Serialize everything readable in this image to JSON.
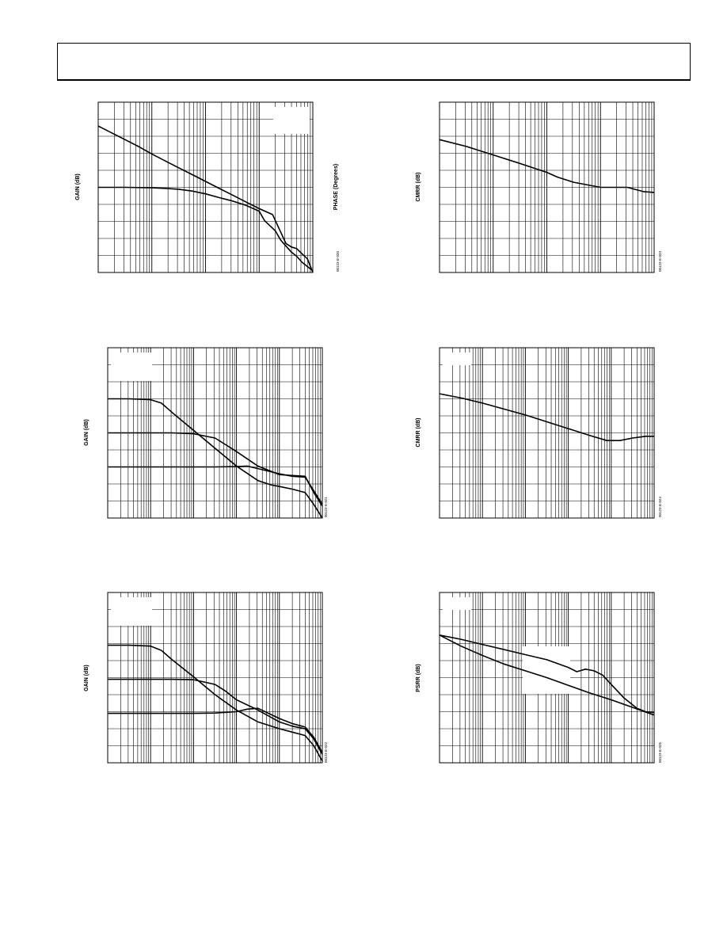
{
  "header": {
    "text": ""
  },
  "chart_data": [
    {
      "id": "c020",
      "type": "line",
      "ylabel": "GAIN (dB)",
      "y2label": "PHASE (Degrees)",
      "figure_code": "00123-E-020",
      "log_decades": 4,
      "y_divisions": 10,
      "series": [
        {
          "x": [
            0,
            0.25,
            0.5,
            0.75,
            1,
            1.25,
            1.5,
            1.75,
            2,
            2.25,
            2.5,
            2.75,
            3,
            3.25,
            3.5,
            3.6,
            3.7,
            3.8,
            3.9,
            4.0
          ],
          "y": [
            8.6,
            8.2,
            7.8,
            7.4,
            6.96,
            6.55,
            6.15,
            5.75,
            5.35,
            4.95,
            4.55,
            4.15,
            3.75,
            3.4,
            1.7,
            1.5,
            1.4,
            1.1,
            0.8,
            0.0
          ]
        },
        {
          "x": [
            0,
            0.5,
            1,
            1.25,
            1.5,
            1.75,
            2,
            2.25,
            2.5,
            2.75,
            3,
            3.1,
            3.2,
            3.3,
            3.4,
            3.5,
            3.6,
            3.7,
            3.8,
            3.9,
            4.0
          ],
          "y": [
            5.0,
            5.0,
            4.97,
            4.94,
            4.89,
            4.78,
            4.62,
            4.4,
            4.2,
            3.95,
            3.6,
            3.05,
            2.75,
            2.45,
            1.9,
            1.55,
            1.2,
            0.95,
            0.6,
            0.35,
            0.1
          ]
        }
      ]
    },
    {
      "id": "c023",
      "type": "line",
      "ylabel": "CMRR (dB)",
      "figure_code": "00123-E-023",
      "log_decades": 4,
      "y_divisions": 10,
      "series": [
        {
          "x": [
            0,
            0.5,
            1,
            1.5,
            2,
            2.2,
            2.5,
            3,
            3.5,
            3.8,
            4.0
          ],
          "y": [
            7.8,
            7.4,
            6.9,
            6.4,
            5.88,
            5.6,
            5.3,
            5.0,
            5.0,
            4.75,
            4.7
          ]
        }
      ]
    },
    {
      "id": "c021",
      "type": "line",
      "ylabel": "GAIN (dB)",
      "figure_code": "00123-E-021",
      "log_decades": 5,
      "y_divisions": 10,
      "series": [
        {
          "x": [
            0,
            0.5,
            1,
            1.25,
            1.5,
            2,
            2.5,
            3,
            3.5,
            3.8,
            4.0,
            4.3,
            4.6,
            4.8,
            5.0
          ],
          "y": [
            7.0,
            7.0,
            6.95,
            6.75,
            6.2,
            5.15,
            4.1,
            3.05,
            2.2,
            1.95,
            1.85,
            1.7,
            1.5,
            0.8,
            0.0
          ]
        },
        {
          "x": [
            0,
            0.5,
            1,
            1.5,
            2,
            2.5,
            2.75,
            3,
            3.5,
            4.0,
            4.3,
            4.6,
            4.8,
            5.0
          ],
          "y": [
            5.0,
            5.0,
            5.0,
            5.0,
            4.95,
            4.7,
            4.3,
            3.9,
            3.05,
            2.55,
            2.5,
            2.45,
            1.5,
            0.7
          ]
        },
        {
          "x": [
            0,
            0.5,
            1,
            1.5,
            2,
            2.5,
            3,
            3.25,
            3.5,
            4.0,
            4.3,
            4.6,
            4.8,
            5.0
          ],
          "y": [
            3.0,
            3.0,
            3.0,
            3.0,
            3.0,
            3.0,
            3.02,
            3.05,
            2.9,
            2.6,
            2.45,
            2.4,
            1.6,
            0.8
          ]
        }
      ]
    },
    {
      "id": "c024",
      "type": "line",
      "ylabel": "CMRR (dB)",
      "figure_code": "00123-E-024",
      "log_decades": 5,
      "y_divisions": 10,
      "series": [
        {
          "x": [
            0,
            0.5,
            1,
            1.5,
            2,
            2.5,
            3,
            3.5,
            3.9,
            4.2,
            4.5,
            4.8,
            5.0
          ],
          "y": [
            7.3,
            7.05,
            6.75,
            6.4,
            6.05,
            5.65,
            5.25,
            4.85,
            4.55,
            4.55,
            4.7,
            4.8,
            4.8
          ]
        }
      ]
    },
    {
      "id": "c022",
      "type": "line",
      "ylabel": "GAIN (dB)",
      "figure_code": "00123-E-022",
      "log_decades": 5,
      "y_divisions": 10,
      "series": [
        {
          "x": [
            0,
            0.5,
            1,
            1.25,
            1.5,
            2,
            2.5,
            3,
            3.5,
            4.0,
            4.3,
            4.6,
            4.8,
            5.0
          ],
          "y": [
            6.9,
            6.9,
            6.85,
            6.6,
            6.05,
            5.05,
            4.0,
            3.1,
            2.4,
            2.0,
            1.8,
            1.6,
            1.0,
            0.1
          ]
        },
        {
          "x": [
            0,
            0.5,
            1,
            1.5,
            2,
            2.5,
            2.75,
            3,
            3.5,
            4.0,
            4.3,
            4.6,
            4.8,
            5.0
          ],
          "y": [
            4.9,
            4.9,
            4.9,
            4.9,
            4.88,
            4.6,
            4.2,
            3.7,
            3.1,
            2.4,
            2.15,
            2.0,
            1.4,
            0.5
          ]
        },
        {
          "x": [
            0,
            0.5,
            1,
            1.5,
            2,
            2.5,
            3,
            3.25,
            3.5,
            4.0,
            4.3,
            4.6,
            4.8,
            5.0
          ],
          "y": [
            2.9,
            2.9,
            2.9,
            2.9,
            2.9,
            2.92,
            3.0,
            3.15,
            3.2,
            2.6,
            2.3,
            2.1,
            1.5,
            0.6
          ]
        }
      ]
    },
    {
      "id": "c025",
      "type": "line",
      "ylabel": "PSRR (dB)",
      "figure_code": "00123-E-025",
      "log_decades": 5,
      "y_divisions": 10,
      "series": [
        {
          "x": [
            0,
            0.5,
            1,
            1.5,
            2,
            2.5,
            3,
            3.2,
            3.4,
            3.6,
            3.8,
            4.0,
            4.3,
            4.6,
            4.8,
            5.0
          ],
          "y": [
            7.5,
            7.25,
            6.95,
            6.65,
            6.35,
            6.05,
            5.6,
            5.35,
            5.5,
            5.4,
            5.15,
            4.6,
            3.8,
            3.2,
            3.0,
            2.95
          ]
        },
        {
          "x": [
            0,
            0.5,
            1,
            1.5,
            2,
            2.5,
            3,
            3.5,
            4.0,
            4.5,
            5.0
          ],
          "y": [
            7.5,
            6.85,
            6.3,
            5.8,
            5.4,
            5.0,
            4.55,
            4.1,
            3.7,
            3.25,
            2.8
          ]
        }
      ]
    }
  ]
}
